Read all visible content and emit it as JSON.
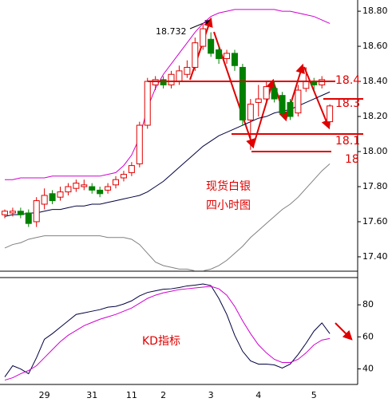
{
  "chart_data": [
    {
      "type": "candlestick",
      "categories": [
        null,
        null,
        null,
        null,
        null,
        "29",
        null,
        null,
        null,
        null,
        null,
        "31",
        null,
        null,
        null,
        null,
        "11",
        null,
        null,
        null,
        "2",
        null,
        null,
        null,
        null,
        null,
        "3",
        null,
        null,
        null,
        null,
        null,
        "4",
        null,
        null,
        null,
        null,
        null,
        null,
        "5",
        null,
        null
      ],
      "candles": {
        "open": [
          17.64,
          17.65,
          17.66,
          17.65,
          17.6,
          17.7,
          17.76,
          17.74,
          17.77,
          17.79,
          17.8,
          17.8,
          17.78,
          17.78,
          17.81,
          17.85,
          17.88,
          17.93,
          18.15,
          18.38,
          18.41,
          18.38,
          18.4,
          18.44,
          18.48,
          18.6,
          18.64,
          18.58,
          18.53,
          18.56,
          18.48,
          18.18,
          18.28,
          18.3,
          18.36,
          18.32,
          18.28,
          18.22,
          18.36,
          18.4,
          18.38,
          18.17
        ],
        "close": [
          17.66,
          17.66,
          17.64,
          17.59,
          17.72,
          17.75,
          17.72,
          17.77,
          17.8,
          17.82,
          17.81,
          17.78,
          17.76,
          17.8,
          17.84,
          17.87,
          17.92,
          18.15,
          18.4,
          18.41,
          18.38,
          18.44,
          18.46,
          18.48,
          18.62,
          18.7,
          18.56,
          18.53,
          18.56,
          18.49,
          18.18,
          18.27,
          18.3,
          18.37,
          18.3,
          18.22,
          18.2,
          18.35,
          18.4,
          18.38,
          18.41,
          18.26
        ],
        "high": [
          17.67,
          17.68,
          17.68,
          17.67,
          17.74,
          17.79,
          17.78,
          17.8,
          17.82,
          17.84,
          17.84,
          17.82,
          17.8,
          17.82,
          17.86,
          17.89,
          17.94,
          18.17,
          18.42,
          18.43,
          18.43,
          18.46,
          18.49,
          18.52,
          18.65,
          18.73,
          18.68,
          18.6,
          18.58,
          18.58,
          18.5,
          18.3,
          18.38,
          18.4,
          18.4,
          18.34,
          18.3,
          18.38,
          18.48,
          18.42,
          18.43,
          18.27
        ],
        "low": [
          17.62,
          17.63,
          17.62,
          17.57,
          17.57,
          17.67,
          17.7,
          17.72,
          17.75,
          17.77,
          17.78,
          17.76,
          17.74,
          17.76,
          17.79,
          17.83,
          17.86,
          17.91,
          18.13,
          18.35,
          18.36,
          18.36,
          18.38,
          18.42,
          18.46,
          18.58,
          18.54,
          18.5,
          18.5,
          18.46,
          18.15,
          18.01,
          18.2,
          18.27,
          18.28,
          18.2,
          18.18,
          18.2,
          18.34,
          18.35,
          18.36,
          18.15
        ],
        "up_color": "#e00000",
        "down_color": "#008000"
      },
      "series": [
        {
          "color": "#d000d0",
          "values": [
            17.84,
            17.84,
            17.85,
            17.85,
            17.85,
            17.85,
            17.86,
            17.86,
            17.86,
            17.86,
            17.86,
            17.86,
            17.86,
            17.87,
            17.88,
            17.92,
            17.98,
            18.08,
            18.25,
            18.36,
            18.44,
            18.5,
            18.56,
            18.62,
            18.68,
            18.73,
            18.77,
            18.79,
            18.8,
            18.81,
            18.81,
            18.81,
            18.81,
            18.81,
            18.81,
            18.8,
            18.8,
            18.79,
            18.78,
            18.77,
            18.75,
            18.73
          ]
        },
        {
          "color": "#000040",
          "values": [
            17.63,
            17.64,
            17.64,
            17.65,
            17.65,
            17.66,
            17.67,
            17.67,
            17.68,
            17.69,
            17.69,
            17.7,
            17.7,
            17.71,
            17.72,
            17.73,
            17.74,
            17.75,
            17.77,
            17.8,
            17.83,
            17.87,
            17.91,
            17.95,
            17.99,
            18.03,
            18.06,
            18.09,
            18.11,
            18.13,
            18.15,
            18.17,
            18.19,
            18.2,
            18.22,
            18.23,
            18.24,
            18.26,
            18.28,
            18.3,
            18.32,
            18.34
          ]
        },
        {
          "color": "#808080",
          "values": [
            17.45,
            17.47,
            17.48,
            17.5,
            17.51,
            17.52,
            17.52,
            17.52,
            17.52,
            17.52,
            17.52,
            17.52,
            17.52,
            17.51,
            17.51,
            17.51,
            17.5,
            17.47,
            17.42,
            17.37,
            17.35,
            17.34,
            17.33,
            17.33,
            17.32,
            17.32,
            17.33,
            17.35,
            17.38,
            17.42,
            17.46,
            17.51,
            17.55,
            17.59,
            17.63,
            17.67,
            17.7,
            17.74,
            17.79,
            17.84,
            17.89,
            17.93
          ]
        }
      ],
      "ylim": [
        17.318,
        18.864
      ],
      "yticks": [
        {
          "value": 17.4,
          "label": "17.40"
        },
        {
          "value": 17.6,
          "label": "17.60"
        },
        {
          "value": 17.8,
          "label": "17.80"
        },
        {
          "value": 18.0,
          "label": "18.00"
        },
        {
          "value": 18.2,
          "label": "18.20"
        },
        {
          "value": 18.4,
          "label": "18.40"
        },
        {
          "value": 18.6,
          "label": "18.60"
        },
        {
          "value": 18.8,
          "label": "18.80"
        }
      ],
      "levels": [
        {
          "label": "18.4",
          "value": 18.4
        },
        {
          "label": "18.3",
          "value": 18.3
        },
        {
          "label": "18.1",
          "value": 18.1
        },
        {
          "label": "18",
          "value": 18
        }
      ],
      "high_label": "18.732",
      "annotations": [
        "现货白银",
        "四小时图"
      ]
    },
    {
      "type": "line",
      "series": [
        {
          "color": "#000040",
          "values": [
            35,
            42,
            40,
            37,
            47,
            58.5,
            62,
            66,
            70,
            74,
            75,
            76,
            77,
            78.5,
            79,
            80.5,
            82.5,
            85.6,
            87.7,
            88.7,
            89.7,
            90,
            90.8,
            91.8,
            92.3,
            93,
            92,
            84,
            74,
            61,
            51,
            45,
            43,
            43,
            42.5,
            40.5,
            43,
            49,
            56,
            63.6,
            68.7,
            62
          ]
        },
        {
          "color": "#d000d0",
          "values": [
            33,
            34.5,
            37,
            39,
            42,
            47,
            52,
            57,
            61,
            64,
            67,
            69,
            71,
            72.5,
            74,
            76,
            78,
            81,
            84,
            86,
            87.5,
            88.5,
            89.5,
            90,
            90.5,
            91,
            91.5,
            90,
            86,
            79,
            70,
            62,
            55,
            50,
            46,
            44,
            44,
            46,
            50,
            55,
            58,
            59
          ]
        }
      ],
      "ylim": [
        30.3,
        97
      ],
      "yticks": [
        40,
        60,
        80
      ],
      "annotation": "KD指标"
    }
  ]
}
